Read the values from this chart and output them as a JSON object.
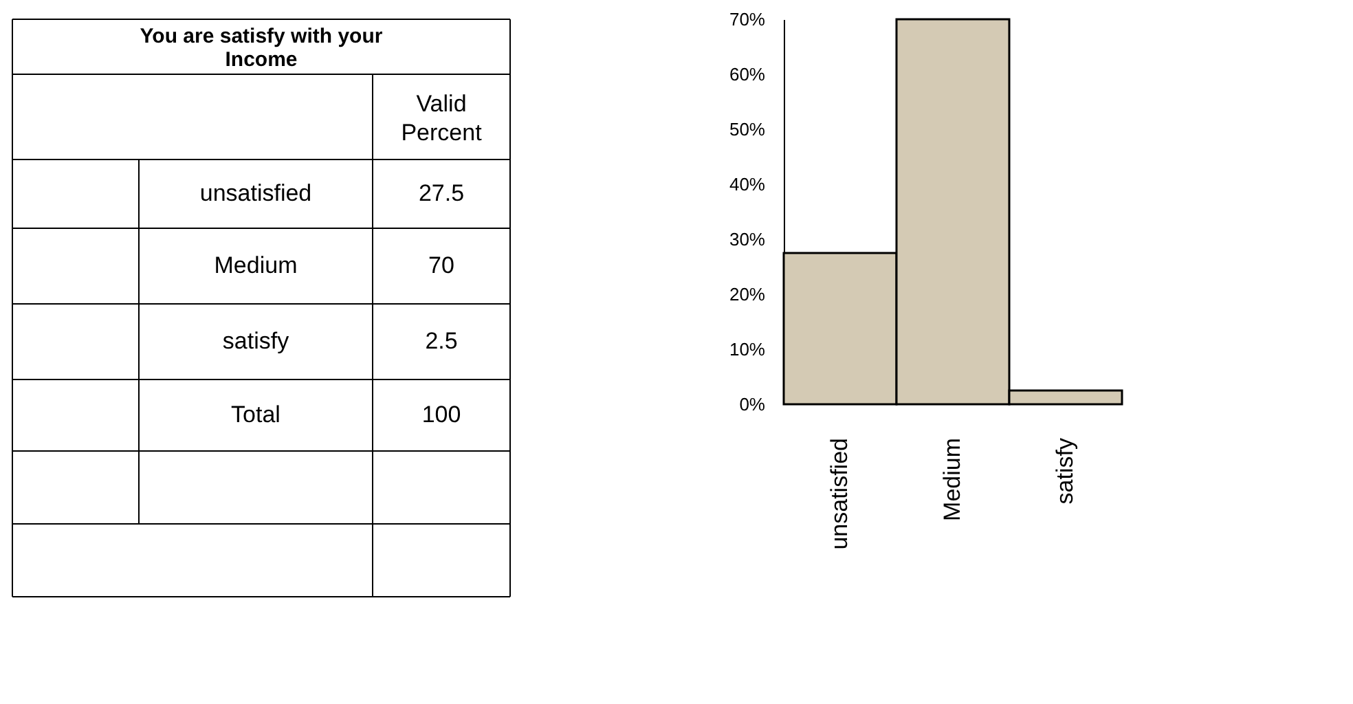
{
  "chart_data": {
    "type": "bar",
    "title": "You  are satisfy with your Income",
    "categories": [
      "unsatisfied",
      "Medium",
      "satisfy"
    ],
    "values": [
      27.5,
      70,
      2.5
    ],
    "color": "#d4cab4",
    "ylim": [
      0,
      70
    ],
    "yticks": [
      {
        "value": 0,
        "label": "0%"
      },
      {
        "value": 10,
        "label": "10%"
      },
      {
        "value": 20,
        "label": "20%"
      },
      {
        "value": 30,
        "label": "30%"
      },
      {
        "value": 40,
        "label": "40%"
      },
      {
        "value": 50,
        "label": "50%"
      },
      {
        "value": 60,
        "label": "60%"
      },
      {
        "value": 70,
        "label": "70%"
      }
    ],
    "annotations": [
      "Valid Percent",
      "27.5",
      "70",
      "2.5",
      "Total",
      "100"
    ],
    "grid": false,
    "legend": false
  }
}
